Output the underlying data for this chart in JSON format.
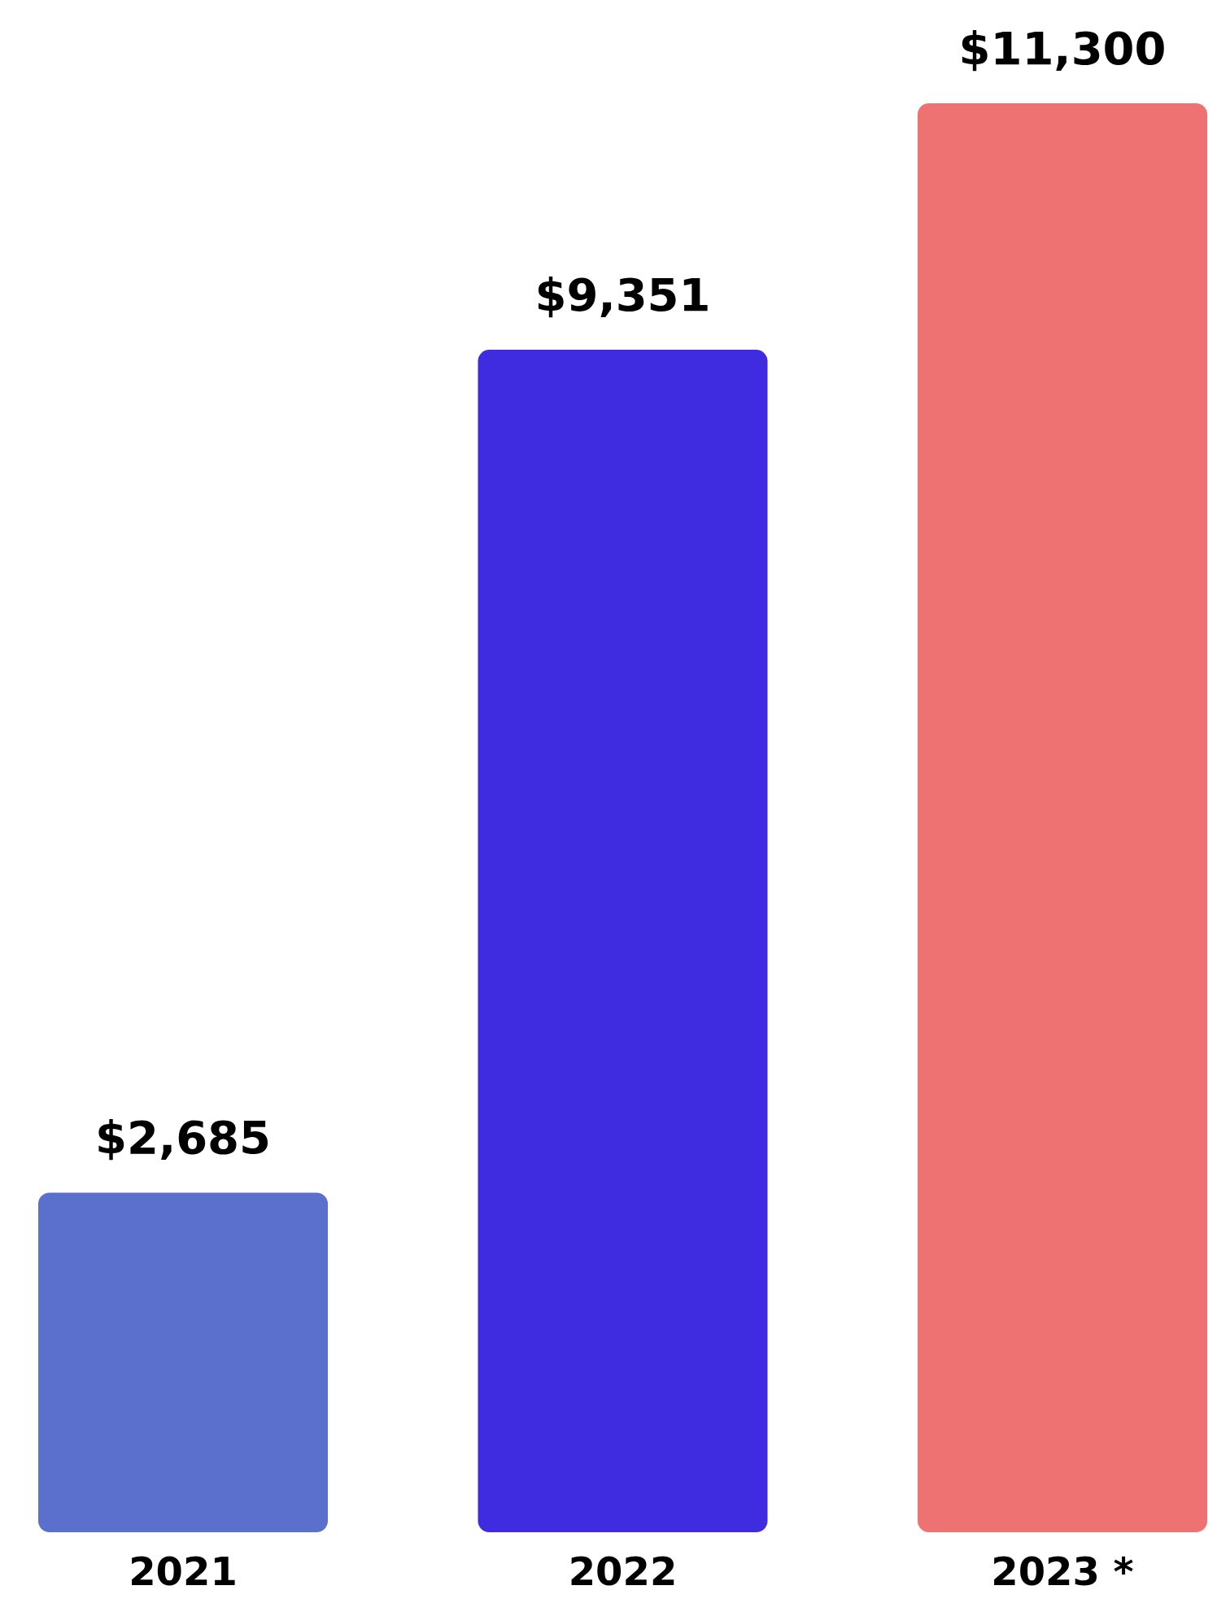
{
  "chart_data": {
    "type": "bar",
    "categories": [
      "2021",
      "2022",
      "2023 *"
    ],
    "values": [
      2685,
      9351,
      11300
    ],
    "colors": [
      "#5b6fcc",
      "#3f2be0",
      "#ef7272"
    ],
    "value_labels": [
      "$2,685",
      "$9,351",
      "$11,300"
    ]
  }
}
